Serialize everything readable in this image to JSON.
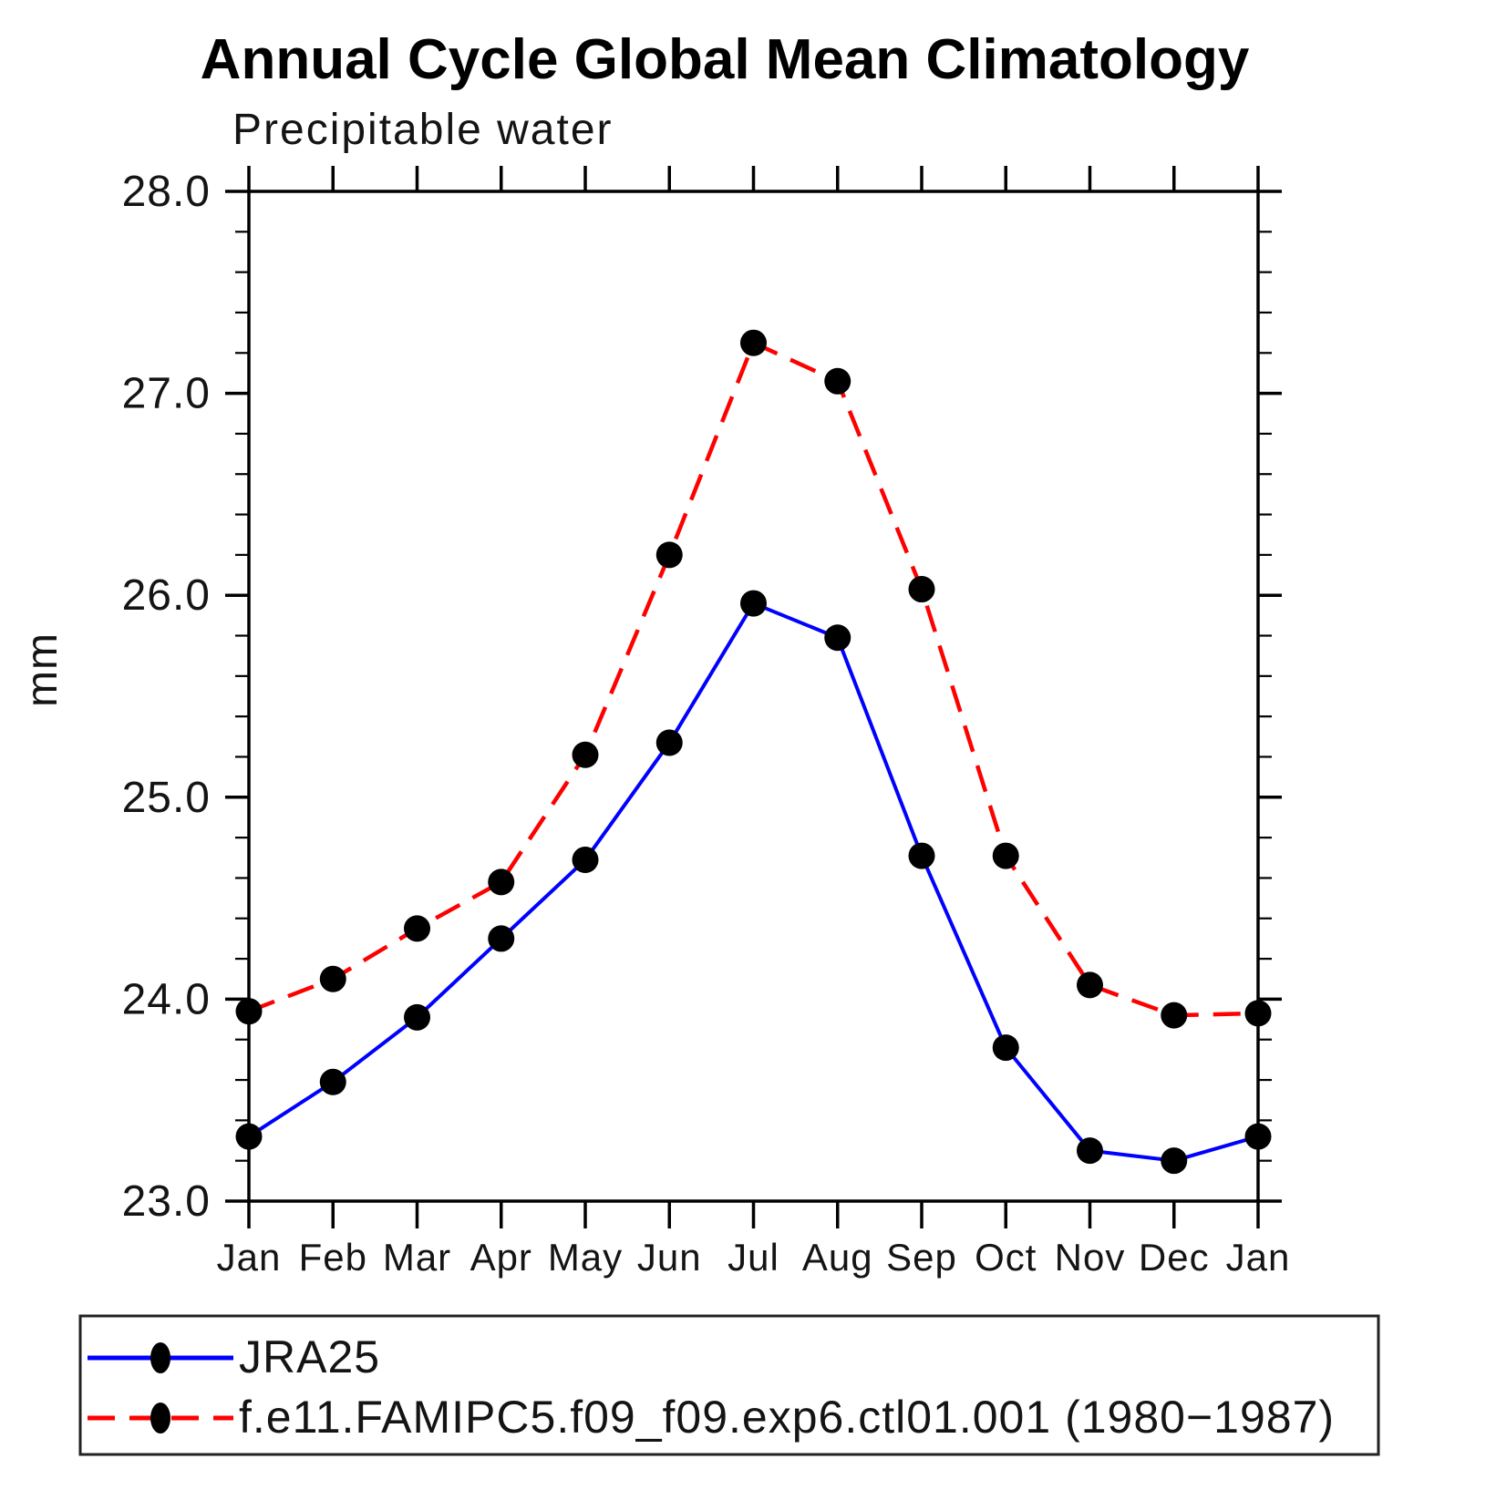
{
  "chart": {
    "title": "Annual Cycle Global Mean Climatology",
    "subtitle": "Precipitable water",
    "ylabel": "mm"
  },
  "chart_data": {
    "type": "line",
    "categories": [
      "Jan",
      "Feb",
      "Mar",
      "Apr",
      "May",
      "Jun",
      "Jul",
      "Aug",
      "Sep",
      "Oct",
      "Nov",
      "Dec",
      "Jan"
    ],
    "series": [
      {
        "name": "JRA25",
        "color": "#0000ff",
        "line_style": "solid",
        "marker": "filled-circle",
        "marker_color": "#000000",
        "values": [
          23.32,
          23.59,
          23.91,
          24.3,
          24.69,
          25.27,
          25.96,
          25.79,
          24.71,
          23.76,
          23.25,
          23.2,
          23.32
        ]
      },
      {
        "name": "f.e11.FAMIPC5.f09_f09.exp6.ctl01.001 (1980−1987)",
        "color": "#ff0000",
        "line_style": "dashed",
        "marker": "filled-circle",
        "marker_color": "#000000",
        "values": [
          23.94,
          24.1,
          24.35,
          24.58,
          25.21,
          26.2,
          27.25,
          27.06,
          26.03,
          24.71,
          24.07,
          23.92,
          23.93
        ]
      }
    ],
    "ylim": [
      23.0,
      28.0
    ],
    "y_major_ticks": [
      23.0,
      24.0,
      25.0,
      26.0,
      27.0,
      28.0
    ],
    "y_tick_labels": [
      "23.0",
      "24.0",
      "25.0",
      "26.0",
      "27.0",
      "28.0"
    ],
    "y_minor_step": 0.2,
    "grid": false,
    "legend_position": "bottom-left-box"
  }
}
